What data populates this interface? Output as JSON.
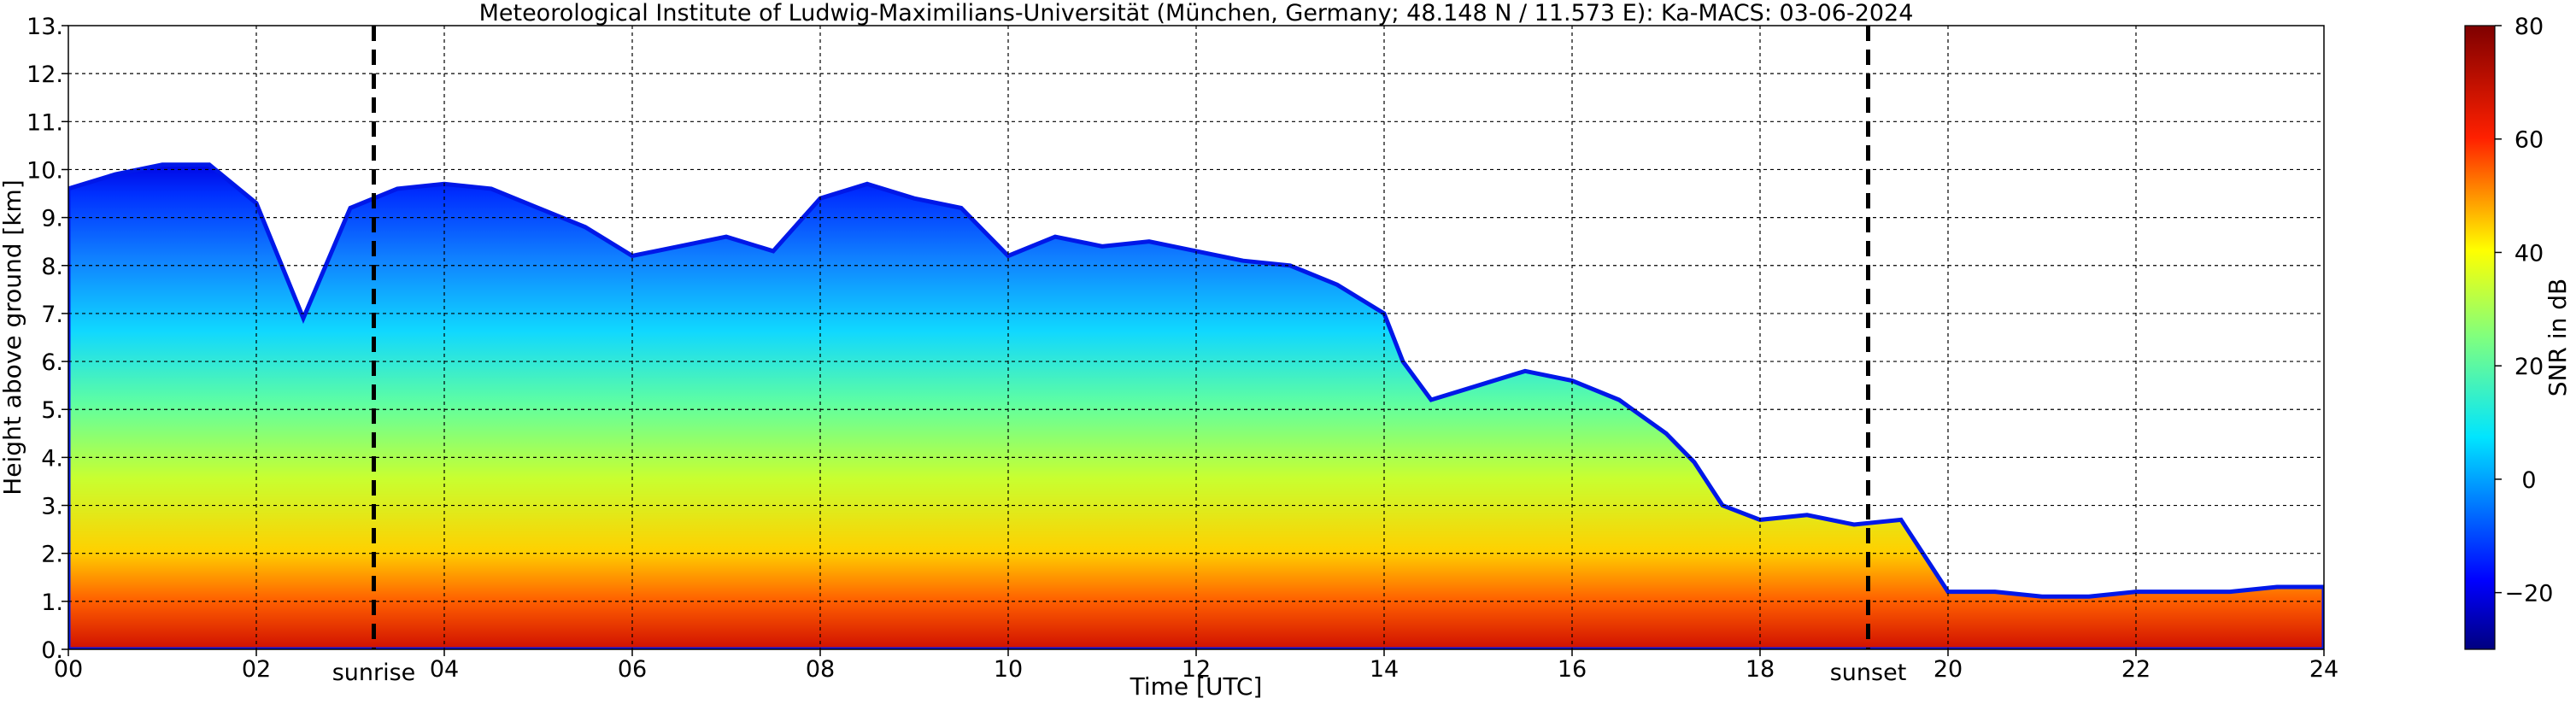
{
  "chart_data": {
    "type": "heatmap",
    "title": "Meteorological Institute of Ludwig-Maximilians-Universität (München, Germany; 48.148 N / 11.573 E):    Ka-MACS: 03-06-2024",
    "xlabel": "Time [UTC]",
    "ylabel": "Height above ground [km]",
    "xlim": [
      0,
      24
    ],
    "ylim": [
      0,
      13
    ],
    "x_ticks": [
      0,
      2,
      4,
      6,
      8,
      10,
      12,
      14,
      16,
      18,
      20,
      22,
      24
    ],
    "x_tick_labels": [
      "00",
      "02",
      "04",
      "06",
      "08",
      "10",
      "12",
      "14",
      "16",
      "18",
      "20",
      "22",
      "24"
    ],
    "y_ticks": [
      0,
      1,
      2,
      3,
      4,
      5,
      6,
      7,
      8,
      9,
      10,
      11,
      12,
      13
    ],
    "y_tick_labels": [
      "0.",
      "1.",
      "2.",
      "3.",
      "4.",
      "5.",
      "6.",
      "7.",
      "8.",
      "9.",
      "10.",
      "11.",
      "12.",
      "13."
    ],
    "grid": true,
    "colorbar": {
      "label": "SNR in dB",
      "range": [
        -30,
        80
      ],
      "ticks": [
        -20,
        0,
        20,
        40,
        60,
        80
      ],
      "tick_labels": [
        "−20",
        "0",
        "20",
        "40",
        "60",
        "80"
      ],
      "colormap": "jet"
    },
    "annotations": [
      {
        "label": "sunrise",
        "x": 3.25
      },
      {
        "label": "sunset",
        "x": 19.15
      }
    ],
    "cloud_top_height_km": [
      [
        0.0,
        9.6
      ],
      [
        0.5,
        9.9
      ],
      [
        1.0,
        10.1
      ],
      [
        1.5,
        10.1
      ],
      [
        2.0,
        9.3
      ],
      [
        2.5,
        6.9
      ],
      [
        3.0,
        9.2
      ],
      [
        3.5,
        9.6
      ],
      [
        4.0,
        9.7
      ],
      [
        4.5,
        9.6
      ],
      [
        5.0,
        9.2
      ],
      [
        5.5,
        8.8
      ],
      [
        6.0,
        8.2
      ],
      [
        6.5,
        8.4
      ],
      [
        7.0,
        8.6
      ],
      [
        7.5,
        8.3
      ],
      [
        8.0,
        9.4
      ],
      [
        8.5,
        9.7
      ],
      [
        9.0,
        9.4
      ],
      [
        9.5,
        9.2
      ],
      [
        10.0,
        8.2
      ],
      [
        10.5,
        8.6
      ],
      [
        11.0,
        8.4
      ],
      [
        11.5,
        8.5
      ],
      [
        12.0,
        8.3
      ],
      [
        12.5,
        8.1
      ],
      [
        13.0,
        8.0
      ],
      [
        13.5,
        7.6
      ],
      [
        14.0,
        7.0
      ],
      [
        14.2,
        6.0
      ],
      [
        14.5,
        5.2
      ],
      [
        15.0,
        5.5
      ],
      [
        15.5,
        5.8
      ],
      [
        16.0,
        5.6
      ],
      [
        16.5,
        5.2
      ],
      [
        17.0,
        4.5
      ],
      [
        17.3,
        3.9
      ],
      [
        17.6,
        3.0
      ],
      [
        18.0,
        2.7
      ],
      [
        18.5,
        2.8
      ],
      [
        19.0,
        2.6
      ],
      [
        19.5,
        2.7
      ],
      [
        20.0,
        1.2
      ],
      [
        20.5,
        1.2
      ],
      [
        21.0,
        1.1
      ],
      [
        21.5,
        1.1
      ],
      [
        22.0,
        1.2
      ],
      [
        22.5,
        1.2
      ],
      [
        23.0,
        1.2
      ],
      [
        23.5,
        1.3
      ],
      [
        24.0,
        1.3
      ]
    ]
  }
}
